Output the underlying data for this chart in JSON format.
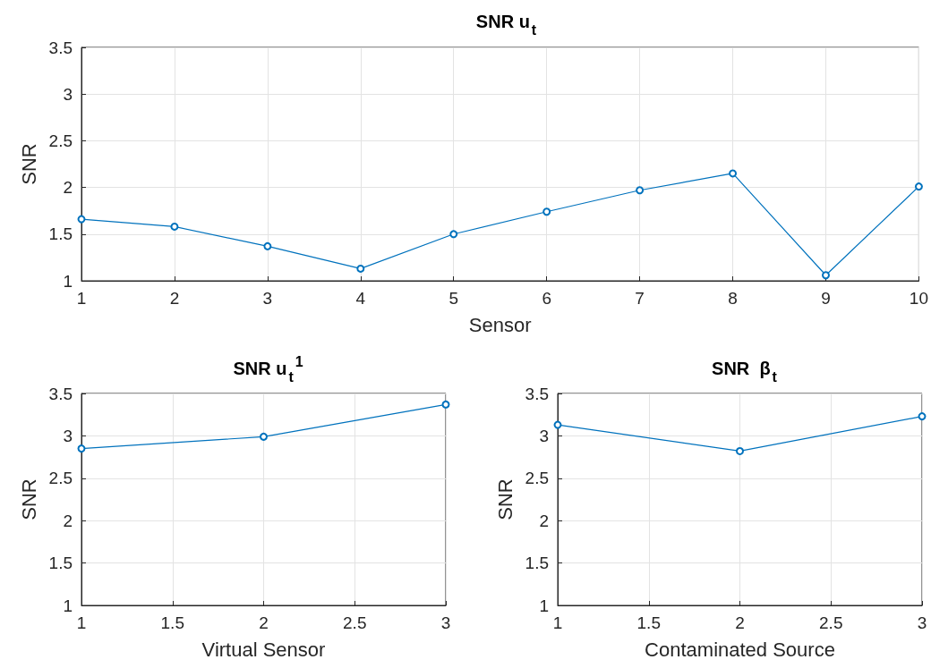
{
  "chart_data": [
    {
      "type": "line",
      "title": "SNR u$_{t}$",
      "xlabel": "Sensor",
      "ylabel": "SNR",
      "x": [
        1,
        2,
        3,
        4,
        5,
        6,
        7,
        8,
        9,
        10
      ],
      "series": [
        {
          "color": "#0072bd",
          "values": [
            1.66,
            1.58,
            1.37,
            1.13,
            1.5,
            1.74,
            1.97,
            2.15,
            1.06,
            2.01
          ]
        }
      ],
      "xlim": [
        1,
        10
      ],
      "xticks": [
        1,
        2,
        3,
        4,
        5,
        6,
        7,
        8,
        9,
        10
      ],
      "ylim": [
        1,
        3.5
      ],
      "yticks": [
        1,
        1.5,
        2,
        2.5,
        3,
        3.5
      ],
      "grid": true,
      "marker": "circle"
    },
    {
      "type": "line",
      "title": "SNR u$_{t}$$^{1}$",
      "xlabel": "Virtual Sensor",
      "ylabel": "SNR",
      "x": [
        1,
        2,
        3
      ],
      "series": [
        {
          "color": "#0072bd",
          "values": [
            2.85,
            2.99,
            3.37
          ]
        }
      ],
      "xlim": [
        1,
        3
      ],
      "xticks": [
        1,
        1.5,
        2,
        2.5,
        3
      ],
      "ylim": [
        1,
        3.5
      ],
      "yticks": [
        1,
        1.5,
        2,
        2.5,
        3,
        3.5
      ],
      "grid": true,
      "marker": "circle"
    },
    {
      "type": "line",
      "title": "SNR  β$_{t}$",
      "xlabel": "Contaminated Source",
      "ylabel": "SNR",
      "x": [
        1,
        2,
        3
      ],
      "series": [
        {
          "color": "#0072bd",
          "values": [
            3.13,
            2.82,
            3.23
          ]
        }
      ],
      "xlim": [
        1,
        3
      ],
      "xticks": [
        1,
        1.5,
        2,
        2.5,
        3
      ],
      "ylim": [
        1,
        3.5
      ],
      "yticks": [
        1,
        1.5,
        2,
        2.5,
        3,
        3.5
      ],
      "grid": true,
      "marker": "circle"
    }
  ]
}
